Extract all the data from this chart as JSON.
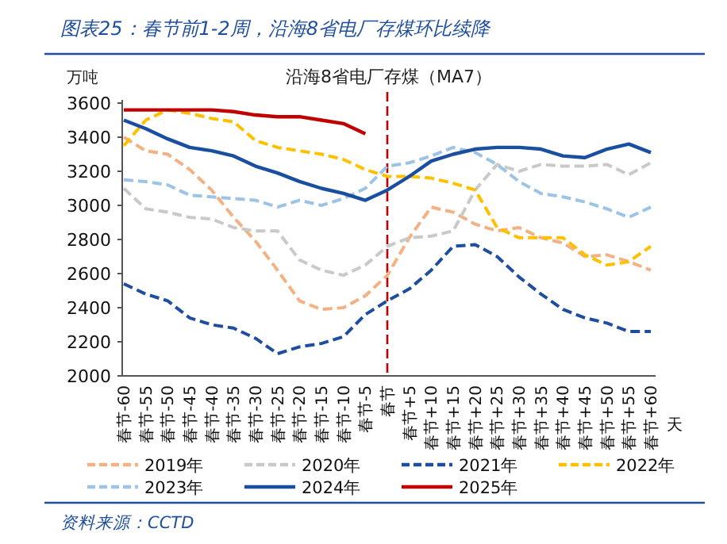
{
  "chart_data": {
    "type": "line",
    "title": "图表25：春节前1-2周，沿海8省电厂存煤环比续降",
    "subtitle": "沿海8省电厂存煤（MA7）",
    "ylabel": "万吨",
    "xlabel": "天",
    "categories": [
      "春节-60",
      "春节-55",
      "春节-50",
      "春节-45",
      "春节-40",
      "春节-35",
      "春节-30",
      "春节-25",
      "春节-20",
      "春节-15",
      "春节-10",
      "春节-5",
      "春节",
      "春节+5",
      "春节+10",
      "春节+15",
      "春节+20",
      "春节+25",
      "春节+30",
      "春节+35",
      "春节+40",
      "春节+45",
      "春节+50",
      "春节+55",
      "春节+60"
    ],
    "ylim": [
      2000,
      3600
    ],
    "yticks": [
      2000,
      2200,
      2400,
      2600,
      2800,
      3000,
      3200,
      3400,
      3600
    ],
    "grid": false,
    "legend": "bottom",
    "series": [
      {
        "name": "2019年",
        "color": "#f4b183",
        "line_style": "dashed",
        "values": [
          3400,
          3320,
          3300,
          3210,
          3090,
          2930,
          2790,
          2620,
          2440,
          2390,
          2400,
          2470,
          2590,
          2810,
          2990,
          2960,
          2890,
          2850,
          2870,
          2810,
          2780,
          2700,
          2710,
          2670,
          2620
        ]
      },
      {
        "name": "2020年",
        "color": "#c9c9c9",
        "line_style": "dashed",
        "values": [
          3100,
          2980,
          2960,
          2930,
          2920,
          2870,
          2850,
          2850,
          2680,
          2620,
          2590,
          2650,
          2760,
          2810,
          2820,
          2850,
          3090,
          3240,
          3200,
          3240,
          3230,
          3230,
          3240,
          3180,
          3250
        ]
      },
      {
        "name": "2021年",
        "color": "#1f4e9f",
        "line_style": "dashed",
        "values": [
          2540,
          2480,
          2440,
          2340,
          2300,
          2280,
          2220,
          2130,
          2170,
          2190,
          2230,
          2360,
          2440,
          2510,
          2620,
          2760,
          2770,
          2700,
          2580,
          2480,
          2390,
          2340,
          2310,
          2260,
          2260
        ]
      },
      {
        "name": "2022年",
        "color": "#ffc000",
        "line_style": "dashed",
        "values": [
          3350,
          3500,
          3560,
          3540,
          3510,
          3490,
          3380,
          3340,
          3320,
          3300,
          3270,
          3210,
          3170,
          3170,
          3160,
          3130,
          3090,
          2870,
          2810,
          2810,
          2810,
          2710,
          2650,
          2670,
          2760
        ]
      },
      {
        "name": "2023年",
        "color": "#9dc3e6",
        "line_style": "dashed",
        "values": [
          3150,
          3140,
          3120,
          3060,
          3050,
          3040,
          3030,
          2990,
          3030,
          3000,
          3040,
          3100,
          3230,
          3250,
          3290,
          3340,
          3310,
          3240,
          3140,
          3070,
          3050,
          3020,
          2980,
          2930,
          2990
        ]
      },
      {
        "name": "2024年",
        "color": "#1a4fa0",
        "line_style": "solid",
        "values": [
          3500,
          3450,
          3390,
          3340,
          3320,
          3290,
          3230,
          3190,
          3140,
          3100,
          3070,
          3030,
          3090,
          3170,
          3260,
          3300,
          3330,
          3340,
          3340,
          3330,
          3290,
          3280,
          3330,
          3360,
          3310
        ]
      },
      {
        "name": "2025年",
        "color": "#c00000",
        "line_style": "solid",
        "values": [
          3560,
          3560,
          3560,
          3560,
          3560,
          3550,
          3530,
          3520,
          3520,
          3500,
          3480,
          3420,
          null,
          null,
          null,
          null,
          null,
          null,
          null,
          null,
          null,
          null,
          null,
          null,
          null
        ]
      }
    ],
    "ref_lines": [
      {
        "axis": "x",
        "value": "春节",
        "color": "#c00000",
        "line_style": "dashed"
      }
    ],
    "annotations": [
      "资料来源：CCTD"
    ]
  }
}
